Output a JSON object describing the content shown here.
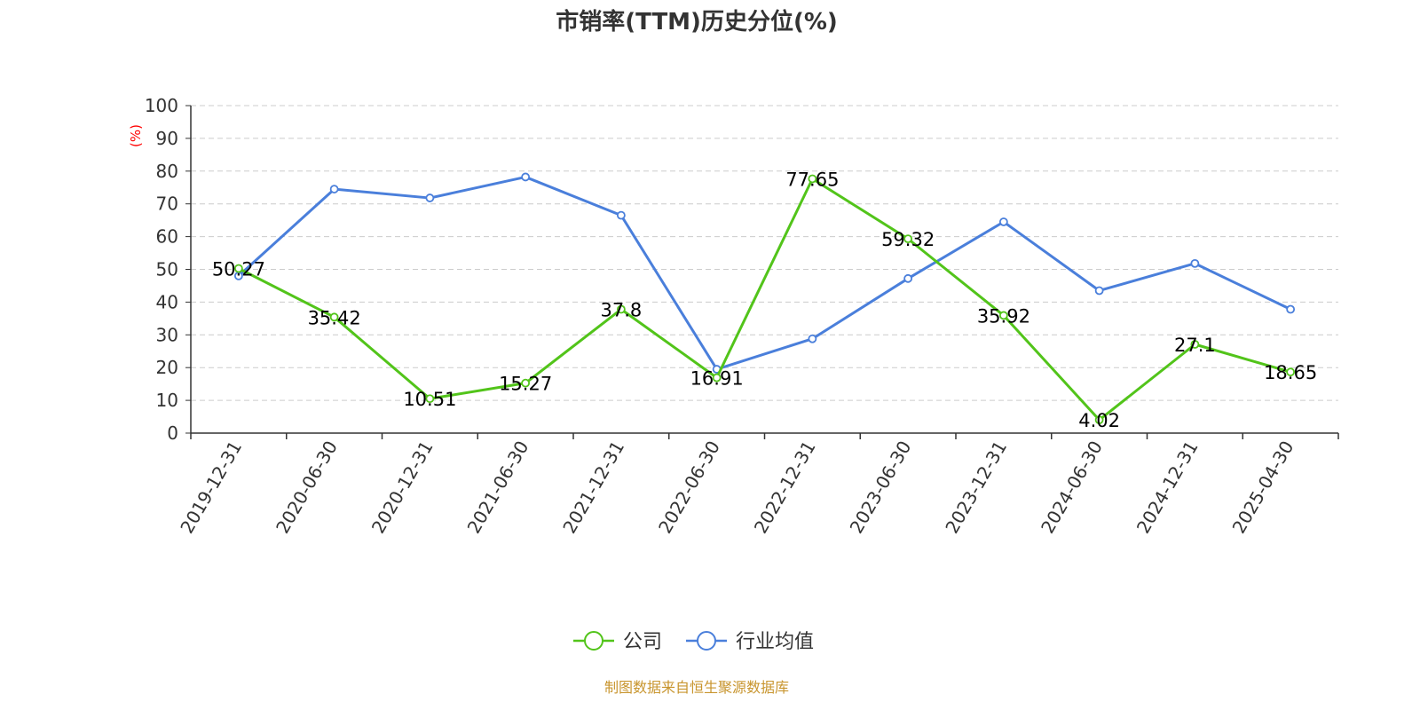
{
  "chart_data": {
    "type": "line",
    "title": "市销率(TTM)历史分位(%)",
    "ylabel": "(%)",
    "ylim": [
      0,
      100
    ],
    "yticks": [
      0,
      10,
      20,
      30,
      40,
      50,
      60,
      70,
      80,
      90,
      100
    ],
    "categories": [
      "2019-12-31",
      "2020-06-30",
      "2020-12-31",
      "2021-06-30",
      "2021-12-31",
      "2022-06-30",
      "2022-12-31",
      "2023-06-30",
      "2023-12-31",
      "2024-06-30",
      "2024-12-31",
      "2025-04-30"
    ],
    "grid": true,
    "legend_position": "bottom-center",
    "series": [
      {
        "name": "公司",
        "color": "#52c41a",
        "values": [
          50.27,
          35.42,
          10.51,
          15.27,
          37.8,
          16.91,
          77.65,
          59.32,
          35.92,
          4.02,
          27.1,
          18.65
        ],
        "show_labels": true
      },
      {
        "name": "行业均值",
        "color": "#4a7fdb",
        "values": [
          48.0,
          74.5,
          71.8,
          78.2,
          66.5,
          19.5,
          28.8,
          47.2,
          64.5,
          43.5,
          51.8,
          37.8
        ],
        "show_labels": false
      }
    ],
    "source": "制图数据来自恒生聚源数据库"
  }
}
